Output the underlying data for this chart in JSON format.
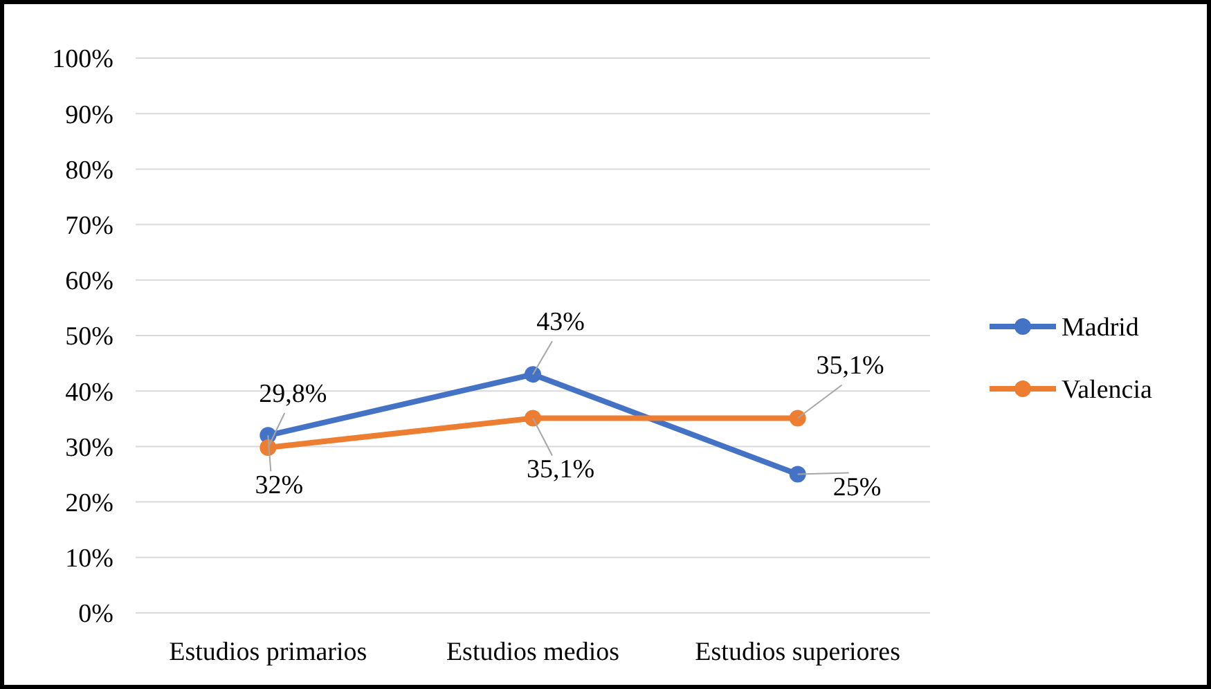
{
  "chart_data": {
    "type": "line",
    "categories": [
      "Estudios primarios",
      "Estudios medios",
      "Estudios superiores"
    ],
    "series": [
      {
        "name": "Madrid",
        "color": "#4472c4",
        "values": [
          32,
          43,
          25
        ],
        "value_labels": [
          "32%",
          "43%",
          "25%"
        ]
      },
      {
        "name": "Valencia",
        "color": "#ed7d31",
        "values": [
          29.8,
          35.1,
          35.1
        ],
        "value_labels": [
          "29,8%",
          "35,1%",
          "35,1%"
        ]
      }
    ],
    "ylim": [
      0,
      100
    ],
    "yticks": [
      {
        "value": 0,
        "label": "0%"
      },
      {
        "value": 10,
        "label": "10%"
      },
      {
        "value": 20,
        "label": "20%"
      },
      {
        "value": 30,
        "label": "30%"
      },
      {
        "value": 40,
        "label": "40%"
      },
      {
        "value": 50,
        "label": "50%"
      },
      {
        "value": 60,
        "label": "60%"
      },
      {
        "value": 70,
        "label": "70%"
      },
      {
        "value": 80,
        "label": "80%"
      },
      {
        "value": 90,
        "label": "90%"
      },
      {
        "value": 100,
        "label": "100%"
      }
    ],
    "grid": "y",
    "legend": "right",
    "marker": "circle",
    "line_style": "solid"
  }
}
